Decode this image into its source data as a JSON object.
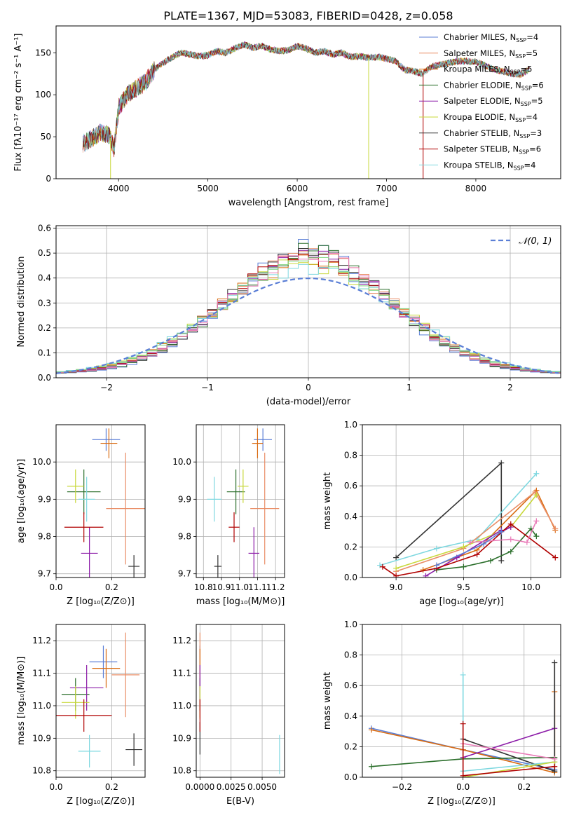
{
  "suptitle": "PLATE=1367, MJD=53083, FIBERID=0428, z=0.058",
  "colors": [
    "#5b7fd6",
    "#e98d66",
    "#d96a10",
    "#2a6e2a",
    "#8c1ca8",
    "#c8d83a",
    "#333333",
    "#b00000",
    "#7fd8e0",
    "#e97bb8",
    "#7fd47f"
  ],
  "legend_entries": [
    {
      "name": "Chabrier MILES, N",
      "sub": "SSP",
      "tail": "=4",
      "color": "#5b7fd6"
    },
    {
      "name": "Salpeter MILES, N",
      "sub": "SSP",
      "tail": "=5",
      "color": "#e98d66"
    },
    {
      "name": "Kroupa MILES, N",
      "sub": "SSP",
      "tail": "=5",
      "color": "#d96a10"
    },
    {
      "name": "Chabrier ELODIE, N",
      "sub": "SSP",
      "tail": "=6",
      "color": "#2a6e2a"
    },
    {
      "name": "Salpeter ELODIE, N",
      "sub": "SSP",
      "tail": "=5",
      "color": "#8c1ca8"
    },
    {
      "name": "Kroupa ELODIE, N",
      "sub": "SSP",
      "tail": "=4",
      "color": "#c8d83a"
    },
    {
      "name": "Chabrier STELIB, N",
      "sub": "SSP",
      "tail": "=3",
      "color": "#333333"
    },
    {
      "name": "Salpeter STELIB, N",
      "sub": "SSP",
      "tail": "=6",
      "color": "#b00000"
    },
    {
      "name": "Kroupa STELIB, N",
      "sub": "SSP",
      "tail": "=4",
      "color": "#7fd8e0"
    }
  ],
  "chart_data": [
    {
      "id": "spectrum",
      "type": "line",
      "xlabel": "wavelength [Angstrom, rest frame]",
      "ylabel": "Flux [fλ10⁻¹⁷ erg cm⁻² s⁻¹ A⁻¹]",
      "xlim": [
        3300,
        8950
      ],
      "ylim": [
        0,
        182
      ],
      "xticks": [
        4000,
        5000,
        6000,
        7000,
        8000
      ],
      "yticks": [
        0,
        50,
        100,
        150
      ],
      "grid": false,
      "legend": "top-right",
      "spectrum_x": [
        3600,
        3700,
        3800,
        3900,
        3950,
        4000,
        4100,
        4200,
        4300,
        4400,
        4500,
        4600,
        4700,
        4800,
        4900,
        5000,
        5100,
        5200,
        5300,
        5400,
        5500,
        5600,
        5700,
        5800,
        5900,
        6000,
        6100,
        6200,
        6300,
        6400,
        6500,
        6600,
        6700,
        6800,
        6900,
        7000,
        7100,
        7200,
        7300,
        7400,
        7500,
        7600,
        7700,
        7800,
        7900,
        8000,
        8100,
        8200,
        8300,
        8400,
        8500,
        8600
      ],
      "spectrum_y": [
        42,
        48,
        55,
        52,
        35,
        85,
        100,
        108,
        115,
        130,
        138,
        145,
        150,
        148,
        146,
        147,
        152,
        150,
        155,
        160,
        156,
        158,
        154,
        152,
        153,
        158,
        155,
        150,
        152,
        148,
        150,
        145,
        146,
        144,
        145,
        143,
        140,
        130,
        128,
        125,
        133,
        136,
        138,
        140,
        140,
        139,
        135,
        130,
        128,
        125,
        124,
        130
      ]
    },
    {
      "id": "residuals",
      "type": "bar",
      "xlabel": "(data-model)/error",
      "ylabel": "Normed distribution",
      "xlim": [
        -2.5,
        2.5
      ],
      "ylim": [
        0,
        0.61
      ],
      "xticks": [
        -2,
        -1,
        0,
        1,
        2
      ],
      "yticks": [
        0.0,
        0.1,
        0.2,
        0.3,
        0.4,
        0.5,
        0.6
      ],
      "grid": true,
      "legend": "top-right",
      "legend_label": "𝒩(0, 1)",
      "gaussian": {
        "mu": 0,
        "sigma": 1
      },
      "bin_width": 0.1
    },
    {
      "id": "age_vs_Z",
      "type": "scatter",
      "xlabel": "Z [log₁₀(Z/Z⊙)]",
      "ylabel": "age  [log₁₀(age/yr)]",
      "xlim": [
        0,
        0.32
      ],
      "ylim": [
        9.69,
        10.1
      ],
      "xticks": [
        0.0,
        0.2
      ],
      "yticks": [
        9.7,
        9.8,
        9.9,
        10.0
      ],
      "grid": true,
      "points": [
        {
          "x": 0.18,
          "y": 10.06,
          "xe": 0.05,
          "ye": 0.03,
          "c": 0
        },
        {
          "x": 0.25,
          "y": 9.875,
          "xe": 0.07,
          "ye": 0.15,
          "c": 1
        },
        {
          "x": 0.19,
          "y": 10.05,
          "xe": 0.03,
          "ye": 0.04,
          "c": 2
        },
        {
          "x": 0.1,
          "y": 9.92,
          "xe": 0.06,
          "ye": 0.06,
          "c": 3
        },
        {
          "x": 0.12,
          "y": 9.755,
          "xe": 0.03,
          "ye": 0.07,
          "c": 4
        },
        {
          "x": 0.07,
          "y": 9.935,
          "xe": 0.03,
          "ye": 0.045,
          "c": 5
        },
        {
          "x": 0.28,
          "y": 9.72,
          "xe": 0.02,
          "ye": 0.03,
          "c": 6
        },
        {
          "x": 0.1,
          "y": 9.825,
          "xe": 0.07,
          "ye": 0.04,
          "c": 7
        },
        {
          "x": 0.11,
          "y": 9.9,
          "xe": 0.03,
          "ye": 0.06,
          "c": 8
        }
      ]
    },
    {
      "id": "age_vs_mass",
      "type": "scatter",
      "xlabel": "mass [log₁₀(M/M⊙)]",
      "ylabel": "",
      "xlim": [
        10.76,
        11.25
      ],
      "ylim": [
        9.69,
        10.1
      ],
      "xticks": [
        10.8,
        10.9,
        11.0,
        11.1,
        11.2
      ],
      "yticks": [
        9.7,
        9.8,
        9.9,
        10.0
      ],
      "grid": true,
      "points": [
        {
          "x": 11.13,
          "y": 10.06,
          "xe": 0.05,
          "ye": 0.03,
          "c": 0
        },
        {
          "x": 11.14,
          "y": 9.875,
          "xe": 0.08,
          "ye": 0.15,
          "c": 1
        },
        {
          "x": 11.1,
          "y": 10.05,
          "xe": 0.03,
          "ye": 0.04,
          "c": 2
        },
        {
          "x": 10.98,
          "y": 9.92,
          "xe": 0.05,
          "ye": 0.06,
          "c": 3
        },
        {
          "x": 11.08,
          "y": 9.755,
          "xe": 0.03,
          "ye": 0.07,
          "c": 4
        },
        {
          "x": 11.02,
          "y": 9.935,
          "xe": 0.03,
          "ye": 0.045,
          "c": 5
        },
        {
          "x": 10.88,
          "y": 9.72,
          "xe": 0.02,
          "ye": 0.03,
          "c": 6
        },
        {
          "x": 10.97,
          "y": 9.825,
          "xe": 0.03,
          "ye": 0.04,
          "c": 7
        },
        {
          "x": 10.86,
          "y": 9.9,
          "xe": 0.04,
          "ye": 0.06,
          "c": 8
        }
      ]
    },
    {
      "id": "mw_vs_age",
      "type": "line",
      "xlabel": "age  [log₁₀(age/yr)]",
      "ylabel": "mass weight",
      "xlim": [
        8.75,
        10.22
      ],
      "ylim": [
        0,
        1
      ],
      "xticks": [
        9.0,
        9.5,
        10.0
      ],
      "yticks": [
        0.0,
        0.2,
        0.4,
        0.6,
        0.8,
        1.0
      ],
      "grid": true,
      "series": [
        {
          "c": 6,
          "x": [
            9.0,
            9.78,
            9.78
          ],
          "y": [
            0.13,
            0.75,
            0.11
          ]
        },
        {
          "c": 8,
          "x": [
            8.88,
            9.3,
            9.6,
            10.04
          ],
          "y": [
            0.08,
            0.19,
            0.25,
            0.68
          ]
        },
        {
          "c": 2,
          "x": [
            9.2,
            9.6,
            10.04,
            10.18
          ],
          "y": [
            0.05,
            0.18,
            0.57,
            0.31
          ]
        },
        {
          "c": 1,
          "x": [
            9.0,
            9.5,
            10.03,
            10.18
          ],
          "y": [
            0.04,
            0.19,
            0.56,
            0.32
          ]
        },
        {
          "c": 5,
          "x": [
            9.0,
            9.5,
            9.85,
            10.04
          ],
          "y": [
            0.06,
            0.2,
            0.33,
            0.54
          ]
        },
        {
          "c": 4,
          "x": [
            9.22,
            9.45,
            9.78,
            9.78,
            9.85
          ],
          "y": [
            0.01,
            0.13,
            0.31,
            0.3,
            0.33
          ]
        },
        {
          "c": 3,
          "x": [
            9.3,
            9.5,
            9.7,
            9.85,
            10.0,
            10.04
          ],
          "y": [
            0.05,
            0.07,
            0.11,
            0.17,
            0.32,
            0.27
          ]
        },
        {
          "c": 7,
          "x": [
            8.9,
            9.0,
            9.3,
            9.6,
            9.85,
            10.18
          ],
          "y": [
            0.07,
            0.01,
            0.06,
            0.15,
            0.35,
            0.13
          ]
        },
        {
          "c": 9,
          "x": [
            9.55,
            9.85,
            9.97,
            10.04
          ],
          "y": [
            0.23,
            0.25,
            0.23,
            0.37
          ]
        },
        {
          "c": 0,
          "x": [
            9.3,
            9.65,
            9.78
          ],
          "y": [
            0.08,
            0.22,
            0.3
          ]
        }
      ]
    },
    {
      "id": "mass_vs_Z",
      "type": "scatter",
      "xlabel": "Z [log₁₀(Z/Z⊙)]",
      "ylabel": "mass [log₁₀(M/M⊙)]",
      "xlim": [
        0,
        0.32
      ],
      "ylim": [
        10.78,
        11.25
      ],
      "xticks": [
        0.0,
        0.2
      ],
      "yticks": [
        10.8,
        10.9,
        11.0,
        11.1,
        11.2
      ],
      "grid": true,
      "points": [
        {
          "x": 0.17,
          "y": 11.135,
          "xe": 0.05,
          "ye": 0.05,
          "c": 0
        },
        {
          "x": 0.25,
          "y": 11.095,
          "xe": 0.05,
          "ye": 0.13,
          "c": 1
        },
        {
          "x": 0.18,
          "y": 11.115,
          "xe": 0.05,
          "ye": 0.06,
          "c": 2
        },
        {
          "x": 0.07,
          "y": 11.035,
          "xe": 0.05,
          "ye": 0.05,
          "c": 3
        },
        {
          "x": 0.11,
          "y": 11.055,
          "xe": 0.06,
          "ye": 0.07,
          "c": 4
        },
        {
          "x": 0.07,
          "y": 11.01,
          "xe": 0.05,
          "ye": 0.05,
          "c": 5
        },
        {
          "x": 0.28,
          "y": 10.865,
          "xe": 0.03,
          "ye": 0.05,
          "c": 6
        },
        {
          "x": 0.1,
          "y": 10.97,
          "xe": 0.1,
          "ye": 0.05,
          "c": 7
        },
        {
          "x": 0.12,
          "y": 10.86,
          "xe": 0.04,
          "ye": 0.05,
          "c": 8
        }
      ]
    },
    {
      "id": "mass_vs_ebv",
      "type": "scatter",
      "xlabel": "E(B-V)",
      "ylabel": "",
      "xlim": [
        -0.0003,
        0.0068
      ],
      "ylim": [
        10.78,
        11.25
      ],
      "xticks": [
        0.0,
        0.0025,
        0.005
      ],
      "xticklabels": [
        "0.0000",
        "0.0025",
        "0.0050"
      ],
      "yticks": [
        10.8,
        10.9,
        11.0,
        11.1,
        11.2
      ],
      "grid": true,
      "points": [
        {
          "x": 0.0,
          "y": 11.135,
          "xe": 0,
          "ye": 0.05,
          "c": 0
        },
        {
          "x": 0.0,
          "y": 11.095,
          "xe": 0,
          "ye": 0.13,
          "c": 1
        },
        {
          "x": 0.0,
          "y": 11.115,
          "xe": 0,
          "ye": 0.06,
          "c": 2
        },
        {
          "x": 0.0,
          "y": 11.035,
          "xe": 0,
          "ye": 0.05,
          "c": 3
        },
        {
          "x": 0.0,
          "y": 11.055,
          "xe": 0,
          "ye": 0.07,
          "c": 4
        },
        {
          "x": 0.0,
          "y": 11.01,
          "xe": 0,
          "ye": 0.05,
          "c": 5
        },
        {
          "x": 0.0,
          "y": 10.9,
          "xe": 0,
          "ye": 0.05,
          "c": 6
        },
        {
          "x": 0.0,
          "y": 10.97,
          "xe": 0,
          "ye": 0.05,
          "c": 7
        },
        {
          "x": 0.0064,
          "y": 10.85,
          "xe": 0,
          "ye": 0.06,
          "c": 8
        }
      ]
    },
    {
      "id": "mw_vs_Z",
      "type": "line",
      "xlabel": "Z [log₁₀(Z/Z⊙)]",
      "ylabel": "mass weight",
      "xlim": [
        -0.33,
        0.32
      ],
      "ylim": [
        0,
        1
      ],
      "xticks": [
        -0.2,
        0.0,
        0.2
      ],
      "yticks": [
        0.0,
        0.2,
        0.4,
        0.6,
        0.8,
        1.0
      ],
      "grid": true,
      "series": [
        {
          "c": 0,
          "x": [
            -0.3,
            0.0,
            0.3
          ],
          "y": [
            0.32,
            0.18,
            0.05
          ]
        },
        {
          "c": 2,
          "x": [
            -0.3,
            0.0,
            0.3,
            0.3
          ],
          "y": [
            0.31,
            0.18,
            0.03,
            0.56
          ]
        },
        {
          "c": 3,
          "x": [
            -0.3,
            0.0,
            0.3
          ],
          "y": [
            0.07,
            0.12,
            0.13
          ]
        },
        {
          "c": 4,
          "x": [
            0.0,
            0.3
          ],
          "y": [
            0.13,
            0.32
          ]
        },
        {
          "c": 6,
          "x": [
            0.0,
            0.3,
            0.3
          ],
          "y": [
            0.25,
            0.04,
            0.75
          ]
        },
        {
          "c": 8,
          "x": [
            0.0,
            0.0,
            0.3
          ],
          "y": [
            0.67,
            0.04,
            0.1
          ]
        },
        {
          "c": 5,
          "x": [
            0.0,
            0.3
          ],
          "y": [
            0.0,
            0.1
          ]
        },
        {
          "c": 9,
          "x": [
            0.0,
            0.3
          ],
          "y": [
            0.22,
            0.12
          ]
        },
        {
          "c": 7,
          "x": [
            0.0,
            0.0,
            0.3
          ],
          "y": [
            0.35,
            0.01,
            0.07
          ]
        }
      ]
    }
  ]
}
